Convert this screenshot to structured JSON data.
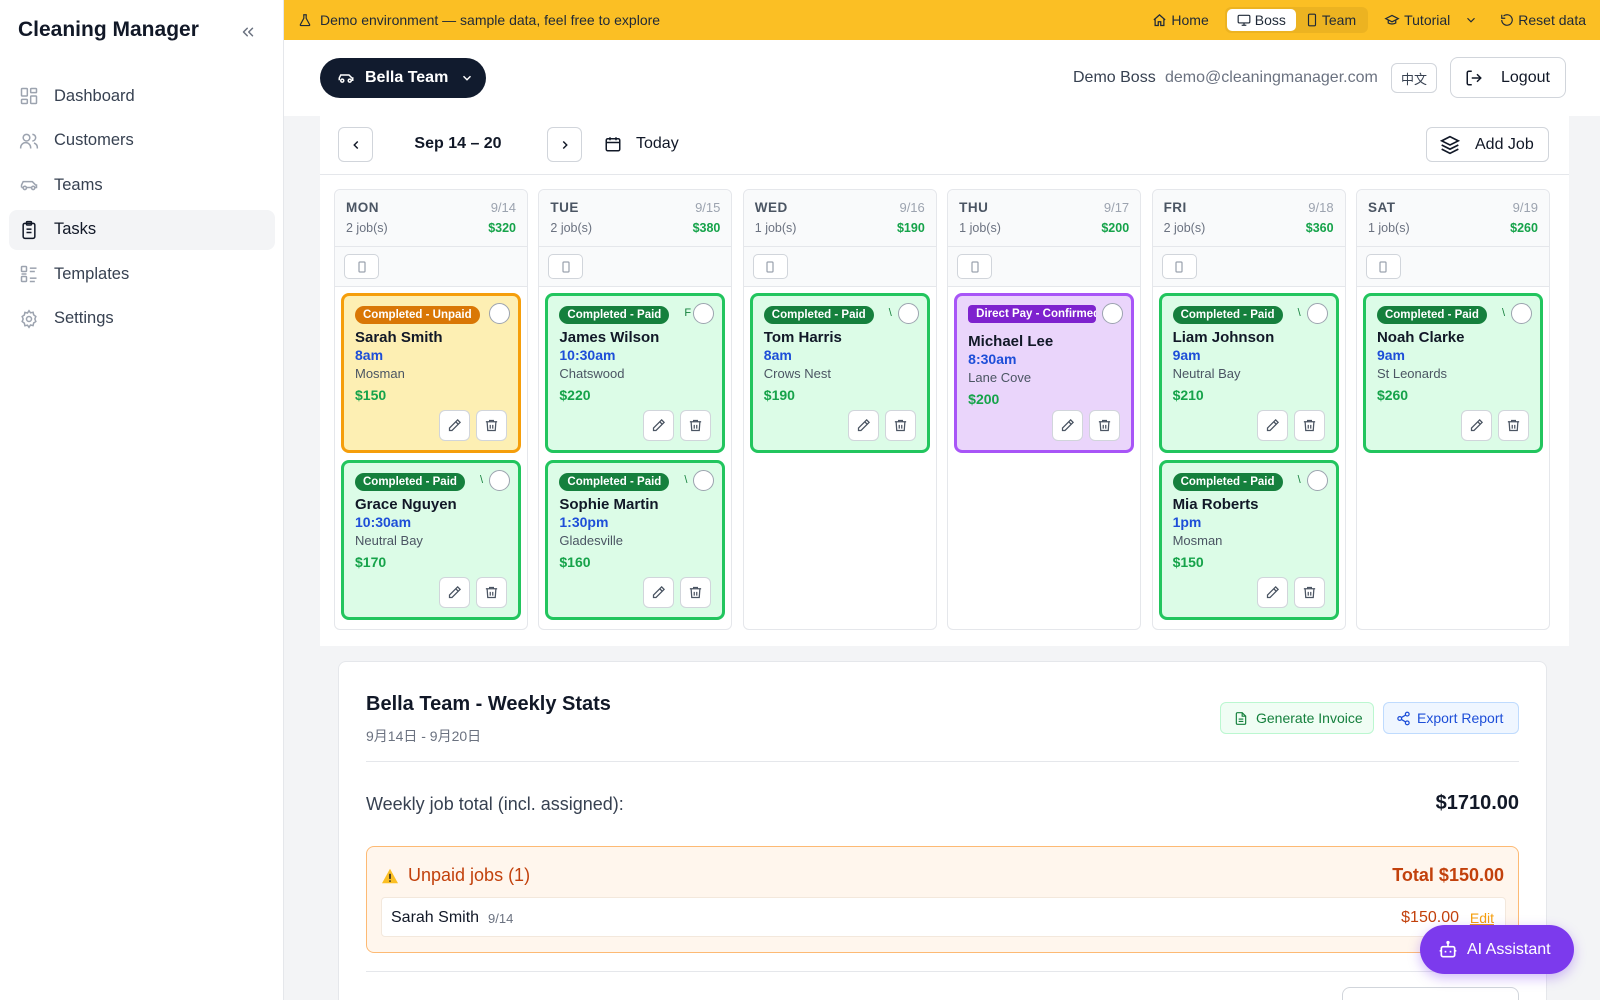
{
  "sidebar": {
    "brand": "Cleaning Manager",
    "items": [
      {
        "label": "Dashboard",
        "icon": "grid-icon"
      },
      {
        "label": "Customers",
        "icon": "users-icon"
      },
      {
        "label": "Teams",
        "icon": "car-icon"
      },
      {
        "label": "Tasks",
        "icon": "clipboard-icon",
        "active": true
      },
      {
        "label": "Templates",
        "icon": "list-icon"
      },
      {
        "label": "Settings",
        "icon": "gear-icon"
      }
    ]
  },
  "demo_bar": {
    "text": "Demo environment — sample data, feel free to explore",
    "home": "Home",
    "boss": "Boss",
    "team": "Team",
    "tutorial": "Tutorial",
    "reset": "Reset data",
    "color": "#fbbf24"
  },
  "header": {
    "team": "Bella Team",
    "user_name": "Demo Boss",
    "user_email": "demo@cleaningmanager.com",
    "lang": "中文",
    "logout": "Logout"
  },
  "week": {
    "label": "Sep 14 – 20",
    "today": "Today",
    "add_job": "Add Job"
  },
  "days": [
    {
      "name": "MON",
      "date": "9/14",
      "count": "2 job(s)",
      "total": "$320",
      "jobs": [
        {
          "status": "Completed - Unpaid",
          "kind": "unpaid",
          "customer": "Sarah Smith",
          "time": "8am",
          "area": "Mosman",
          "amount": "$150",
          "extra": ""
        },
        {
          "status": "Completed - Paid",
          "kind": "paid",
          "customer": "Grace Nguyen",
          "time": "10:30am",
          "area": "Neutral Bay",
          "amount": "$170",
          "extra": "\\"
        }
      ]
    },
    {
      "name": "TUE",
      "date": "9/15",
      "count": "2 job(s)",
      "total": "$380",
      "jobs": [
        {
          "status": "Completed - Paid",
          "kind": "paid",
          "customer": "James Wilson",
          "time": "10:30am",
          "area": "Chatswood",
          "amount": "$220",
          "extra": "F"
        },
        {
          "status": "Completed - Paid",
          "kind": "paid",
          "customer": "Sophie Martin",
          "time": "1:30pm",
          "area": "Gladesville",
          "amount": "$160",
          "extra": "\\"
        }
      ]
    },
    {
      "name": "WED",
      "date": "9/16",
      "count": "1 job(s)",
      "total": "$190",
      "jobs": [
        {
          "status": "Completed - Paid",
          "kind": "paid",
          "customer": "Tom Harris",
          "time": "8am",
          "area": "Crows Nest",
          "amount": "$190",
          "extra": "\\"
        }
      ]
    },
    {
      "name": "THU",
      "date": "9/17",
      "count": "1 job(s)",
      "total": "$200",
      "jobs": [
        {
          "status": "Direct Pay - Confirmed",
          "kind": "direct",
          "customer": "Michael Lee",
          "time": "8:30am",
          "area": "Lane Cove",
          "amount": "$200",
          "extra": ""
        }
      ]
    },
    {
      "name": "FRI",
      "date": "9/18",
      "count": "2 job(s)",
      "total": "$360",
      "jobs": [
        {
          "status": "Completed - Paid",
          "kind": "paid",
          "customer": "Liam Johnson",
          "time": "9am",
          "area": "Neutral Bay",
          "amount": "$210",
          "extra": "\\"
        },
        {
          "status": "Completed - Paid",
          "kind": "paid",
          "customer": "Mia Roberts",
          "time": "1pm",
          "area": "Mosman",
          "amount": "$150",
          "extra": "\\"
        }
      ]
    },
    {
      "name": "SAT",
      "date": "9/19",
      "count": "1 job(s)",
      "total": "$260",
      "jobs": [
        {
          "status": "Completed - Paid",
          "kind": "paid",
          "customer": "Noah Clarke",
          "time": "9am",
          "area": "St Leonards",
          "amount": "$260",
          "extra": "\\"
        }
      ]
    }
  ],
  "stats": {
    "title": "Bella Team - Weekly Stats",
    "range": "9月14日 - 9月20日",
    "generate_invoice": "Generate Invoice",
    "export_report": "Export Report",
    "total_label": "Weekly job total (incl. assigned):",
    "total_value": "$1710.00",
    "unpaid_title": "Unpaid jobs (1)",
    "unpaid_total": "Total $150.00",
    "unpaid_rows": [
      {
        "name": "Sarah Smith",
        "date": "9/14",
        "amount": "$150.00",
        "action": "Edit"
      }
    ]
  },
  "ai_assistant": "AI Assistant"
}
